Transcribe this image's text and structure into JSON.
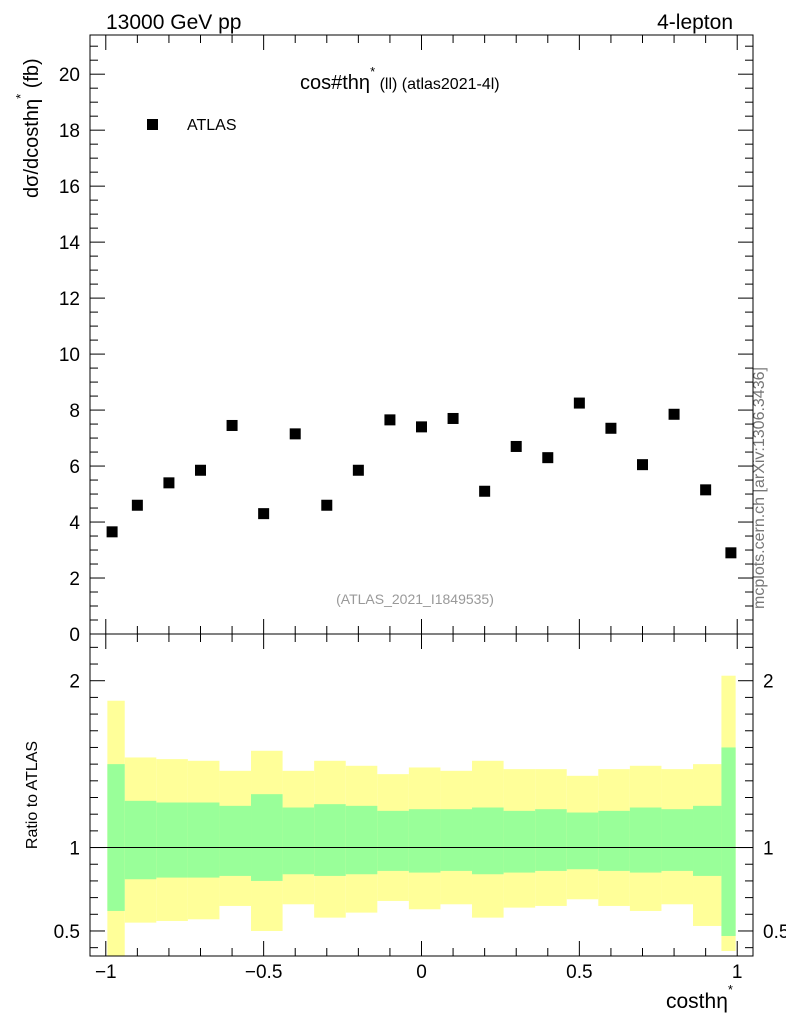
{
  "header": {
    "left": "13000 GeV pp",
    "right": "4-lepton"
  },
  "watermark": "mcplots.cern.ch [arXiv:1306.3436]",
  "chart_data": {
    "type": "scatter",
    "title_main": "cos#thη",
    "title_sup": "*",
    "title_rest": " (ll) (atlas2021-4l)",
    "analysis_id": "(ATLAS_2021_I1849535)",
    "legend": [
      {
        "label": "ATLAS",
        "marker": "square",
        "color": "#000000"
      }
    ],
    "ylabel_main": "dσ/dcosthη",
    "ylabel_sup": "*",
    "ylabel_unit": " (fb)",
    "xlabel_main": "costhη",
    "xlabel_sup": "*",
    "xlim": [
      -1.05,
      1.05
    ],
    "ylim": [
      0,
      21.4
    ],
    "y_ticks": [
      0,
      2,
      4,
      6,
      8,
      10,
      12,
      14,
      16,
      18,
      20
    ],
    "y_tick_labels": [
      "0",
      "2",
      "4",
      "6",
      "8",
      "10",
      "12",
      "14",
      "16",
      "18",
      "20"
    ],
    "x_ticks": [
      -1,
      -0.5,
      0,
      0.5,
      1
    ],
    "x_tick_labels": [
      "−1",
      "−0.5",
      "0",
      "0.5",
      "1"
    ],
    "series": [
      {
        "name": "ATLAS",
        "x": [
          -0.98,
          -0.9,
          -0.8,
          -0.7,
          -0.6,
          -0.5,
          -0.4,
          -0.3,
          -0.2,
          -0.1,
          0.0,
          0.1,
          0.2,
          0.3,
          0.4,
          0.5,
          0.6,
          0.7,
          0.8,
          0.9,
          0.98
        ],
        "y": [
          3.65,
          4.6,
          5.4,
          5.85,
          7.45,
          4.3,
          7.15,
          4.6,
          5.85,
          7.65,
          7.4,
          7.7,
          5.1,
          6.7,
          6.3,
          8.25,
          7.35,
          6.05,
          7.85,
          5.15,
          2.9
        ]
      }
    ],
    "ratio": {
      "ylabel": "Ratio to ATLAS",
      "ylim": [
        0.35,
        2.28
      ],
      "y_ticks": [
        0.5,
        1,
        2
      ],
      "y_tick_labels": [
        "0.5",
        "1",
        "2"
      ],
      "reference_line": 1,
      "bin_edges": [
        -0.995,
        -0.94,
        -0.84,
        -0.74,
        -0.64,
        -0.54,
        -0.44,
        -0.34,
        -0.24,
        -0.14,
        -0.04,
        0.06,
        0.16,
        0.26,
        0.36,
        0.46,
        0.56,
        0.66,
        0.76,
        0.86,
        0.95,
        0.995
      ],
      "band_inner": {
        "color": "#99ff99",
        "lo": [
          0.62,
          0.81,
          0.82,
          0.82,
          0.83,
          0.8,
          0.84,
          0.83,
          0.84,
          0.86,
          0.85,
          0.86,
          0.84,
          0.85,
          0.86,
          0.87,
          0.86,
          0.85,
          0.86,
          0.83,
          0.47
        ],
        "hi": [
          1.5,
          1.28,
          1.27,
          1.27,
          1.25,
          1.32,
          1.24,
          1.26,
          1.25,
          1.22,
          1.23,
          1.23,
          1.24,
          1.22,
          1.23,
          1.21,
          1.22,
          1.24,
          1.23,
          1.25,
          1.6
        ]
      },
      "band_outer": {
        "color": "#ffff99",
        "lo": [
          0.35,
          0.55,
          0.56,
          0.57,
          0.65,
          0.5,
          0.66,
          0.58,
          0.61,
          0.68,
          0.63,
          0.66,
          0.58,
          0.64,
          0.65,
          0.69,
          0.65,
          0.62,
          0.66,
          0.53,
          0.38
        ],
        "hi": [
          1.88,
          1.54,
          1.53,
          1.52,
          1.46,
          1.58,
          1.46,
          1.52,
          1.49,
          1.44,
          1.48,
          1.46,
          1.52,
          1.47,
          1.47,
          1.43,
          1.47,
          1.49,
          1.47,
          1.5,
          2.03
        ]
      }
    }
  }
}
